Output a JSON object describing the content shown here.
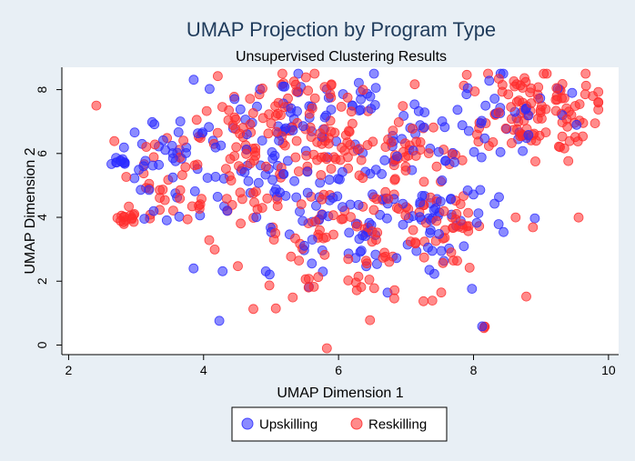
{
  "chart_data": {
    "type": "scatter",
    "title": "UMAP Projection by Program Type",
    "subtitle": "Unsupervised Clustering Results",
    "xlabel": "UMAP Dimension 1",
    "ylabel": "UMAP Dimension 2",
    "xlim": [
      1.9,
      10.15
    ],
    "ylim": [
      -0.3,
      8.7
    ],
    "xticks": [
      "2",
      "4",
      "6",
      "8",
      "10"
    ],
    "yticks": [
      "0",
      "2",
      "4",
      "6",
      "8"
    ],
    "grid": false,
    "legend_position": "bottom",
    "series": [
      {
        "name": "Upskilling",
        "color": "#2b2bff",
        "points": []
      },
      {
        "name": "Reskilling",
        "color": "#ff2b2b",
        "points": []
      }
    ],
    "point_clusters": [
      {
        "series": 0,
        "cx": 2.8,
        "cy": 5.7,
        "rx": 0.08,
        "ry": 0.06,
        "n": 8
      },
      {
        "series": 1,
        "cx": 2.85,
        "cy": 4.0,
        "rx": 0.1,
        "ry": 0.08,
        "n": 14
      },
      {
        "series": 0,
        "cx": 3.4,
        "cy": 5.9,
        "rx": 0.35,
        "ry": 0.5,
        "n": 24
      },
      {
        "series": 1,
        "cx": 3.4,
        "cy": 5.7,
        "rx": 0.35,
        "ry": 0.55,
        "n": 18
      },
      {
        "series": 0,
        "cx": 3.5,
        "cy": 4.5,
        "rx": 0.4,
        "ry": 0.45,
        "n": 10
      },
      {
        "series": 1,
        "cx": 3.4,
        "cy": 4.4,
        "rx": 0.45,
        "ry": 0.35,
        "n": 12
      },
      {
        "series": 0,
        "cx": 4.5,
        "cy": 5.7,
        "rx": 0.55,
        "ry": 1.2,
        "n": 40
      },
      {
        "series": 1,
        "cx": 4.5,
        "cy": 6.0,
        "rx": 0.6,
        "ry": 1.3,
        "n": 55
      },
      {
        "series": 1,
        "cx": 5.2,
        "cy": 7.6,
        "rx": 0.55,
        "ry": 0.7,
        "n": 35
      },
      {
        "series": 0,
        "cx": 5.3,
        "cy": 7.4,
        "rx": 0.6,
        "ry": 0.8,
        "n": 22
      },
      {
        "series": 0,
        "cx": 5.7,
        "cy": 5.6,
        "rx": 0.7,
        "ry": 1.0,
        "n": 40
      },
      {
        "series": 1,
        "cx": 5.7,
        "cy": 5.8,
        "rx": 0.7,
        "ry": 1.0,
        "n": 50
      },
      {
        "series": 0,
        "cx": 6.0,
        "cy": 7.5,
        "rx": 0.45,
        "ry": 0.35,
        "n": 18
      },
      {
        "series": 1,
        "cx": 6.2,
        "cy": 6.2,
        "rx": 0.7,
        "ry": 0.6,
        "n": 35
      },
      {
        "series": 0,
        "cx": 6.5,
        "cy": 3.3,
        "rx": 1.0,
        "ry": 1.0,
        "n": 75
      },
      {
        "series": 1,
        "cx": 6.4,
        "cy": 3.2,
        "rx": 1.0,
        "ry": 1.0,
        "n": 95
      },
      {
        "series": 0,
        "cx": 7.2,
        "cy": 6.5,
        "rx": 0.55,
        "ry": 0.6,
        "n": 25
      },
      {
        "series": 1,
        "cx": 7.0,
        "cy": 5.8,
        "rx": 0.5,
        "ry": 0.6,
        "n": 18
      },
      {
        "series": 0,
        "cx": 7.5,
        "cy": 4.0,
        "rx": 0.5,
        "ry": 0.5,
        "n": 25
      },
      {
        "series": 1,
        "cx": 7.6,
        "cy": 4.0,
        "rx": 0.6,
        "ry": 0.5,
        "n": 28
      },
      {
        "series": 0,
        "cx": 8.5,
        "cy": 7.2,
        "rx": 0.65,
        "ry": 0.9,
        "n": 35
      },
      {
        "series": 1,
        "cx": 8.7,
        "cy": 7.3,
        "rx": 0.6,
        "ry": 0.8,
        "n": 90
      },
      {
        "series": 1,
        "cx": 9.1,
        "cy": 7.3,
        "rx": 0.3,
        "ry": 0.5,
        "n": 25
      },
      {
        "series": 0,
        "cx": 8.12,
        "cy": 0.6,
        "rx": 0.01,
        "ry": 0.01,
        "n": 1
      },
      {
        "series": 1,
        "cx": 8.14,
        "cy": 0.56,
        "rx": 0.02,
        "ry": 0.02,
        "n": 3
      }
    ]
  }
}
